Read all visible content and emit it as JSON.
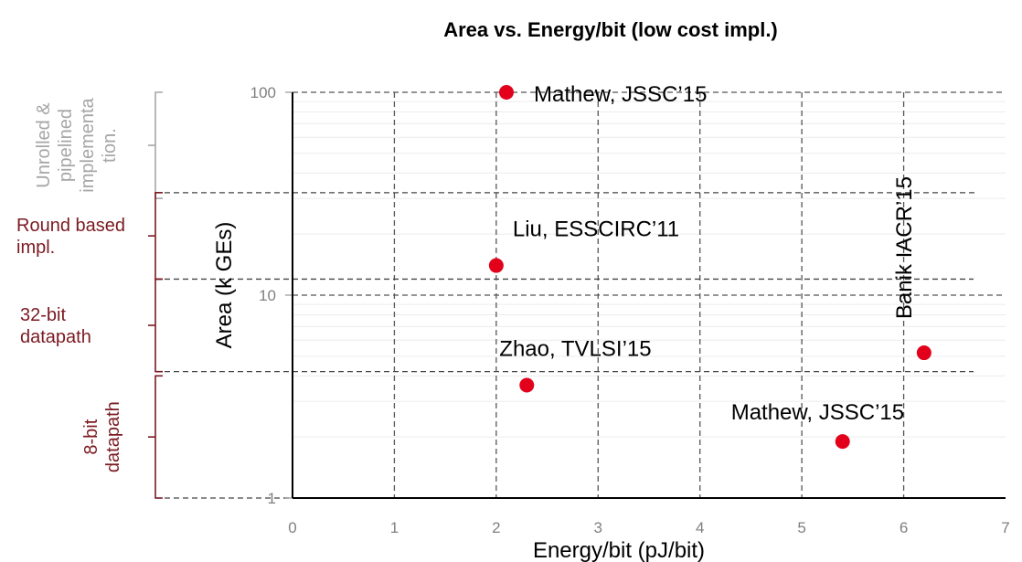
{
  "chart_data": {
    "type": "scatter",
    "title": "Area vs. Energy/bit (low cost impl.)",
    "xlabel": "Energy/bit (pJ/bit)",
    "ylabel": "Area (k GEs)",
    "xlim": [
      0,
      7
    ],
    "ylim": [
      1,
      100
    ],
    "y_scale": "log",
    "x_ticks": [
      "0",
      "1",
      "2",
      "3",
      "4",
      "5",
      "6",
      "7"
    ],
    "y_ticks": [
      {
        "value": 1,
        "label": "1"
      },
      {
        "value": 10,
        "label": "10"
      },
      {
        "value": 100,
        "label": "100"
      }
    ],
    "grid": true,
    "point_color": "#e3001b",
    "points": [
      {
        "x": 2.1,
        "y": 100,
        "label": "Mathew, JSSC’15"
      },
      {
        "x": 2.0,
        "y": 14,
        "label": "Liu, ESSCIRC’11"
      },
      {
        "x": 2.3,
        "y": 3.6,
        "label": "Zhao, TVLSI’15"
      },
      {
        "x": 5.4,
        "y": 1.9,
        "label": "Mathew, JSSC’15"
      },
      {
        "x": 6.2,
        "y": 5.2,
        "label": "Banik IACR’15"
      }
    ],
    "groups": [
      {
        "label": "Unrolled & pipelined implementa tion.",
        "lines": [
          "Unrolled &",
          "pipelined",
          "implementa",
          "tion."
        ],
        "y_from": 100,
        "y_to": 30,
        "color": "#a6a6a6"
      },
      {
        "label": "Round based impl.",
        "lines": [
          "Round based",
          "impl."
        ],
        "y_from": 32,
        "y_to": 12,
        "color": "#7b1a22"
      },
      {
        "label": "32-bit datapath",
        "lines": [
          "32-bit",
          "datapath"
        ],
        "y_from": 12,
        "y_to": 4.2,
        "color": "#7b1a22"
      },
      {
        "label": "8-bit datapath",
        "lines": [
          "8-bit",
          "datapath"
        ],
        "y_from": 4.0,
        "y_to": 1,
        "color": "#7b1a22"
      }
    ],
    "group_boundaries": [
      32,
      12,
      4.2
    ]
  }
}
